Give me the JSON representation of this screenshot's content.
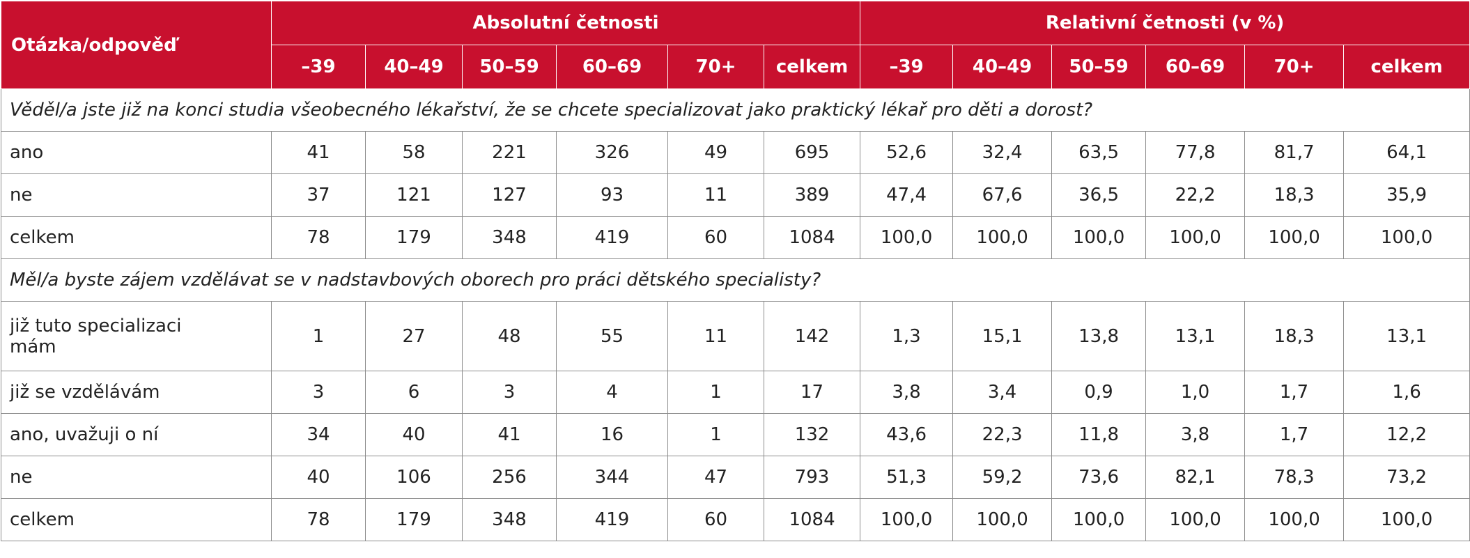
{
  "header": {
    "title": "Otázka/odpověď",
    "groups": [
      "Absolutní četnosti",
      "Relativní četnosti (v %)"
    ],
    "columns": [
      "–39",
      "40–49",
      "50–59",
      "60–69",
      "70+",
      "celkem",
      "–39",
      "40–49",
      "50–59",
      "60–69",
      "70+",
      "celkem"
    ]
  },
  "sections": [
    {
      "question": "Věděl/a jste již na konci studia všeobecného lékařství, že se chcete specializovat jako praktický lékař pro děti a dorost?",
      "rows": [
        {
          "label": "ano",
          "values": [
            "41",
            "58",
            "221",
            "326",
            "49",
            "695",
            "52,6",
            "32,4",
            "63,5",
            "77,8",
            "81,7",
            "64,1"
          ]
        },
        {
          "label": "ne",
          "values": [
            "37",
            "121",
            "127",
            "93",
            "11",
            "389",
            "47,4",
            "67,6",
            "36,5",
            "22,2",
            "18,3",
            "35,9"
          ]
        },
        {
          "label": "celkem",
          "values": [
            "78",
            "179",
            "348",
            "419",
            "60",
            "1084",
            "100,0",
            "100,0",
            "100,0",
            "100,0",
            "100,0",
            "100,0"
          ]
        }
      ]
    },
    {
      "question": "Měl/a byste zájem vzdělávat se v nadstavbových oborech pro práci dětského specialisty?",
      "rows": [
        {
          "label": "již tuto specializaci mám",
          "values": [
            "1",
            "27",
            "48",
            "55",
            "11",
            "142",
            "1,3",
            "15,1",
            "13,8",
            "13,1",
            "18,3",
            "13,1"
          ]
        },
        {
          "label": "již se vzdělávám",
          "values": [
            "3",
            "6",
            "3",
            "4",
            "1",
            "17",
            "3,8",
            "3,4",
            "0,9",
            "1,0",
            "1,7",
            "1,6"
          ]
        },
        {
          "label": "ano, uvažuji o ní",
          "values": [
            "34",
            "40",
            "41",
            "16",
            "1",
            "132",
            "43,6",
            "22,3",
            "11,8",
            "3,8",
            "1,7",
            "12,2"
          ]
        },
        {
          "label": "ne",
          "values": [
            "40",
            "106",
            "256",
            "344",
            "47",
            "793",
            "51,3",
            "59,2",
            "73,6",
            "82,1",
            "78,3",
            "73,2"
          ]
        },
        {
          "label": "celkem",
          "values": [
            "78",
            "179",
            "348",
            "419",
            "60",
            "1084",
            "100,0",
            "100,0",
            "100,0",
            "100,0",
            "100,0",
            "100,0"
          ]
        }
      ]
    }
  ]
}
